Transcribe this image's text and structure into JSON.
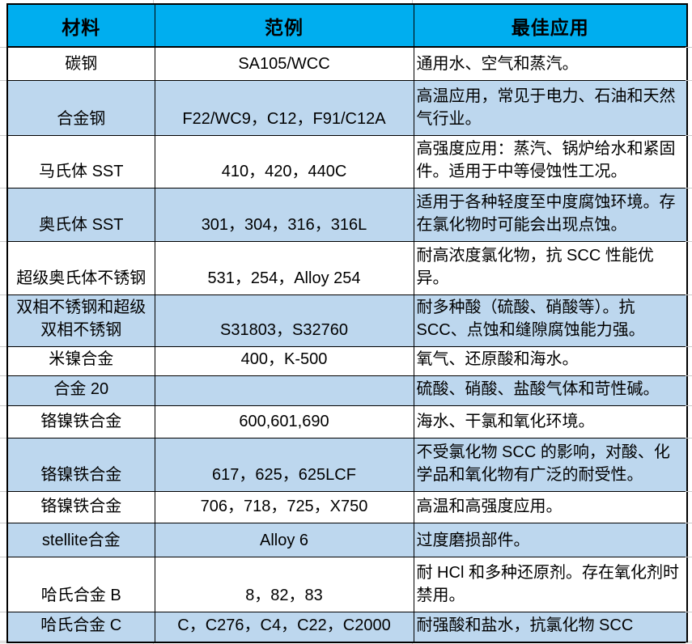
{
  "colors": {
    "header_bg": "#00AEEF",
    "alt_row_bg": "#BDD7EE",
    "border": "#000000",
    "gridline": "#C9C9C9"
  },
  "table": {
    "headers": [
      "材料",
      "范例",
      "最佳应用"
    ],
    "rows": [
      {
        "material": "碳钢",
        "examples": "SA105/WCC",
        "application": "通用水、空气和蒸汽。"
      },
      {
        "material": "合金钢",
        "examples": "F22/WC9，C12，F91/C12A",
        "application": "高温应用，常见于电力、石油和天然气行业。"
      },
      {
        "material": "马氏体 SST",
        "examples": "410，420，440C",
        "application": "高强度应用：蒸汽、锅炉给水和紧固件。适用于中等侵蚀性工况。"
      },
      {
        "material": "奥氏体 SST",
        "examples": "301，304，316，316L",
        "application": "适用于各种轻度至中度腐蚀环境。存在氯化物时可能会出现点蚀。"
      },
      {
        "material": "超级奥氏体不锈钢",
        "examples": "531，254，Alloy 254",
        "application": "耐高浓度氯化物，抗 SCC 性能优异。"
      },
      {
        "material": "双相不锈钢和超级双相不锈钢",
        "examples": "S31803，S32760",
        "application": "耐多种酸（硫酸、硝酸等）。抗 SCC、点蚀和缝隙腐蚀能力强。"
      },
      {
        "material": "米镍合金",
        "examples": "400，K-500",
        "application": "氧气、还原酸和海水。"
      },
      {
        "material": "合金 20",
        "examples": "",
        "application": "硫酸、硝酸、盐酸气体和苛性碱。"
      },
      {
        "material": "铬镍铁合金",
        "examples": "600,601,690",
        "application": "海水、干氯和氧化环境。"
      },
      {
        "material": "铬镍铁合金",
        "examples": "617，625，625LCF",
        "application": "不受氯化物 SCC 的影响，对酸、化学品和氧化物有广泛的耐受性。"
      },
      {
        "material": "铬镍铁合金",
        "examples": "706，718，725，X750",
        "application": "高温和高强度应用。"
      },
      {
        "material": "stellite合金",
        "examples": "Alloy 6",
        "application": "过度磨损部件。"
      },
      {
        "material": "哈氏合金 B",
        "examples": "8，82，83",
        "application": "耐 HCl 和多种还原剂。存在氧化剂时禁用。"
      },
      {
        "material": "哈氏合金 C",
        "examples": "C，C276，C4，C22，C2000",
        "application": "耐强酸和盐水，抗氯化物 SCC"
      }
    ]
  }
}
